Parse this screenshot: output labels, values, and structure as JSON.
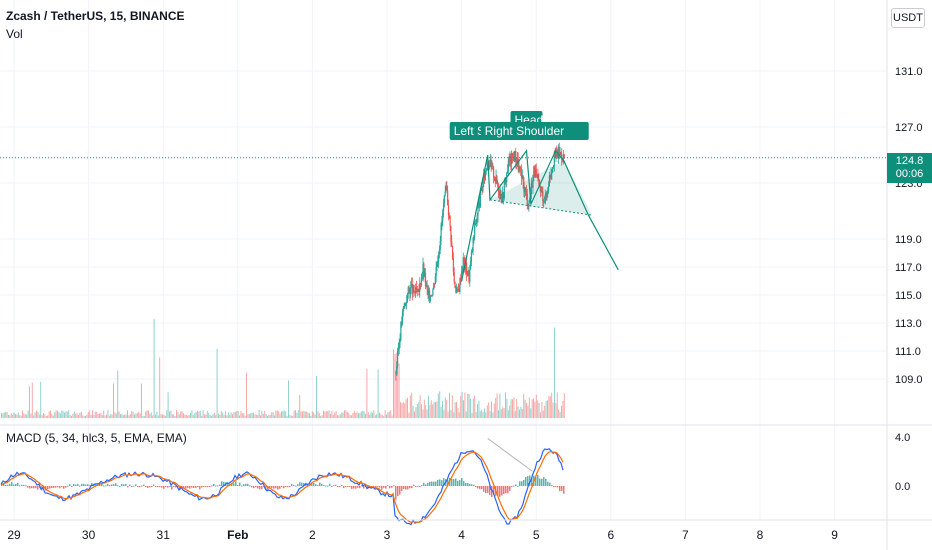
{
  "header": {
    "symbol_title": "Zcash / TetherUS, 15, BINANCE",
    "vol_label": "Vol",
    "currency_button": "USDT"
  },
  "price_tag": {
    "price": "124.8",
    "countdown": "00:06"
  },
  "indicator": {
    "macd_label": "MACD (5, 34, hlc3, 5, EMA, EMA)"
  },
  "pattern_labels": {
    "left": "Left Shoulder",
    "head": "Head",
    "right": "Right Shoulder"
  },
  "colors": {
    "up": "#26a69a",
    "down": "#ef5350",
    "pattern": "#0e8f7b",
    "macd_line": "#2962ff",
    "signal_line": "#ff6d00"
  },
  "chart_data": {
    "type": "candlestick",
    "price_axis_ticks": [
      "131.0",
      "127.0",
      "123.0",
      "119.0",
      "117.0",
      "115.0",
      "113.0",
      "111.0",
      "109.0"
    ],
    "macd_axis_ticks": [
      "4.0",
      "0.0"
    ],
    "time_axis_ticks": [
      "29",
      "30",
      "31",
      "Feb",
      "2",
      "3",
      "4",
      "5",
      "6",
      "7",
      "8",
      "9"
    ],
    "last_price": 124.8,
    "price_path": [
      [
        5.12,
        109.5
      ],
      [
        5.18,
        112.5
      ],
      [
        5.22,
        114.0
      ],
      [
        5.3,
        115.5
      ],
      [
        5.42,
        115.0
      ],
      [
        5.48,
        117.0
      ],
      [
        5.55,
        114.8
      ],
      [
        5.62,
        115.5
      ],
      [
        5.7,
        118.5
      ],
      [
        5.76,
        121.5
      ],
      [
        5.8,
        122.5
      ],
      [
        5.86,
        119.0
      ],
      [
        5.9,
        116.0
      ],
      [
        5.95,
        115.0
      ],
      [
        6.02,
        117.5
      ],
      [
        6.1,
        116.3
      ],
      [
        6.18,
        120.0
      ],
      [
        6.27,
        122.5
      ],
      [
        6.35,
        124.7
      ],
      [
        6.41,
        124.0
      ],
      [
        6.47,
        123.0
      ],
      [
        6.55,
        122.0
      ],
      [
        6.63,
        124.5
      ],
      [
        6.72,
        125.0
      ],
      [
        6.82,
        123.0
      ],
      [
        6.9,
        121.5
      ],
      [
        6.97,
        124.0
      ],
      [
        7.05,
        122.5
      ],
      [
        7.12,
        121.8
      ],
      [
        7.18,
        123.5
      ],
      [
        7.24,
        124.8
      ],
      [
        7.3,
        125.2
      ],
      [
        7.38,
        124.8
      ]
    ],
    "head_and_shoulders_pattern": {
      "points": [
        [
          6.0,
          116.0
        ],
        [
          6.35,
          125.0
        ],
        [
          6.38,
          121.8
        ],
        [
          6.87,
          125.3
        ],
        [
          6.93,
          121.5
        ],
        [
          7.26,
          125.3
        ],
        [
          7.37,
          124.6
        ],
        [
          7.7,
          120.7
        ],
        [
          8.1,
          116.8
        ]
      ],
      "neckline": [
        [
          6.38,
          121.8
        ],
        [
          7.75,
          120.7
        ]
      ]
    }
  }
}
